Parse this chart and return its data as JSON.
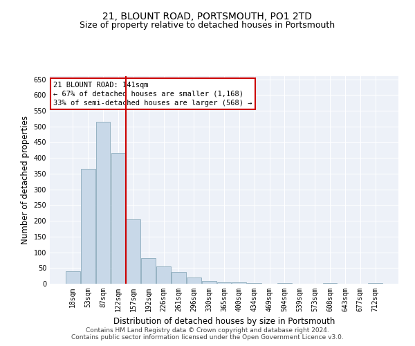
{
  "title": "21, BLOUNT ROAD, PORTSMOUTH, PO1 2TD",
  "subtitle": "Size of property relative to detached houses in Portsmouth",
  "xlabel": "Distribution of detached houses by size in Portsmouth",
  "ylabel": "Number of detached properties",
  "categories": [
    "18sqm",
    "53sqm",
    "87sqm",
    "122sqm",
    "157sqm",
    "192sqm",
    "226sqm",
    "261sqm",
    "296sqm",
    "330sqm",
    "365sqm",
    "400sqm",
    "434sqm",
    "469sqm",
    "504sqm",
    "539sqm",
    "573sqm",
    "608sqm",
    "643sqm",
    "677sqm",
    "712sqm"
  ],
  "values": [
    40,
    365,
    515,
    415,
    205,
    82,
    55,
    37,
    20,
    8,
    5,
    5,
    3,
    1,
    3,
    0,
    0,
    2,
    0,
    0,
    2
  ],
  "bar_color": "#c8d8e8",
  "bar_edge_color": "#8aaabb",
  "vline_x_index": 3.5,
  "vline_color": "#cc0000",
  "annotation_line1": "21 BLOUNT ROAD: 141sqm",
  "annotation_line2": "← 67% of detached houses are smaller (1,168)",
  "annotation_line3": "33% of semi-detached houses are larger (568) →",
  "annotation_box_facecolor": "#ffffff",
  "annotation_box_edgecolor": "#cc0000",
  "ylim": [
    0,
    660
  ],
  "yticks": [
    0,
    50,
    100,
    150,
    200,
    250,
    300,
    350,
    400,
    450,
    500,
    550,
    600,
    650
  ],
  "footer_line1": "Contains HM Land Registry data © Crown copyright and database right 2024.",
  "footer_line2": "Contains public sector information licensed under the Open Government Licence v3.0.",
  "background_color": "#edf1f8",
  "grid_color": "#ffffff",
  "title_fontsize": 10,
  "subtitle_fontsize": 9,
  "tick_fontsize": 7,
  "axis_label_fontsize": 8.5,
  "footer_fontsize": 6.5
}
